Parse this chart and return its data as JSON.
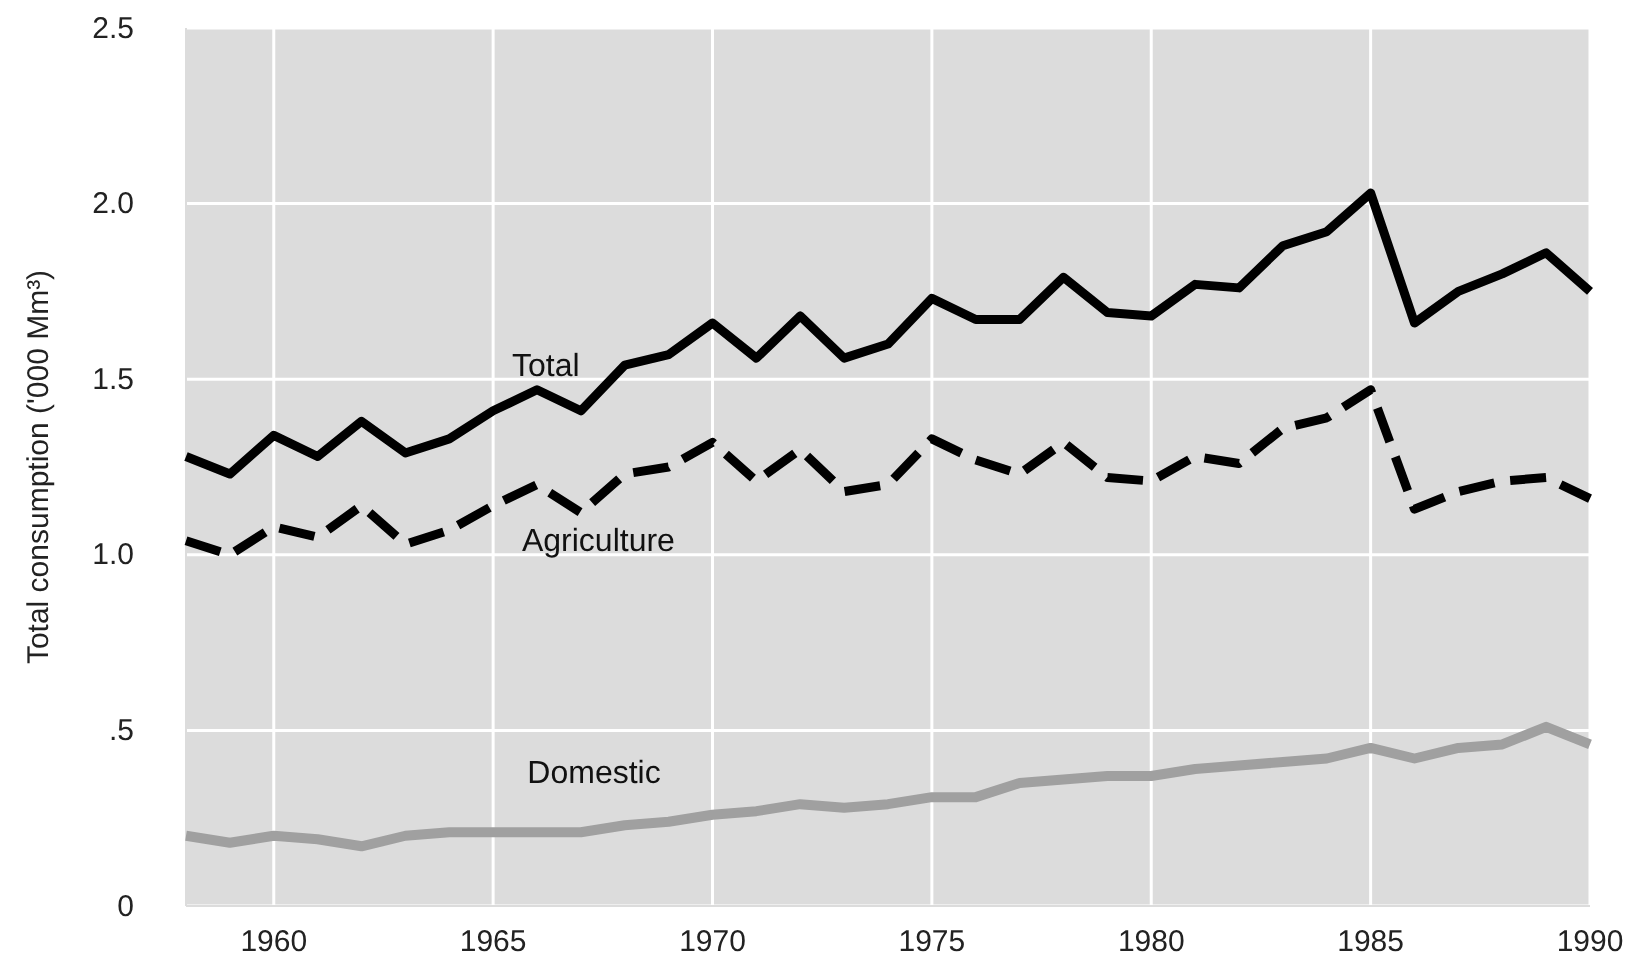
{
  "chart_data": {
    "type": "line",
    "ylabel": "Total consumption ('000 Mm³)",
    "x": [
      1958,
      1959,
      1960,
      1961,
      1962,
      1963,
      1964,
      1965,
      1966,
      1967,
      1968,
      1969,
      1970,
      1971,
      1972,
      1973,
      1974,
      1975,
      1976,
      1977,
      1978,
      1979,
      1980,
      1981,
      1982,
      1983,
      1984,
      1985,
      1986,
      1987,
      1988,
      1989,
      1990
    ],
    "series": [
      {
        "name": "Total",
        "color": "#000000",
        "line_style": "solid",
        "values": [
          1.28,
          1.23,
          1.34,
          1.28,
          1.38,
          1.29,
          1.33,
          1.41,
          1.47,
          1.41,
          1.54,
          1.57,
          1.66,
          1.56,
          1.68,
          1.56,
          1.6,
          1.73,
          1.67,
          1.67,
          1.79,
          1.69,
          1.68,
          1.77,
          1.76,
          1.88,
          1.92,
          2.03,
          1.66,
          1.75,
          1.8,
          1.86,
          1.75
        ]
      },
      {
        "name": "Agriculture",
        "color": "#000000",
        "line_style": "dashed",
        "values": [
          1.04,
          1.0,
          1.08,
          1.05,
          1.14,
          1.03,
          1.07,
          1.14,
          1.2,
          1.12,
          1.23,
          1.25,
          1.32,
          1.21,
          1.3,
          1.18,
          1.2,
          1.33,
          1.27,
          1.23,
          1.32,
          1.22,
          1.21,
          1.28,
          1.26,
          1.36,
          1.39,
          1.47,
          1.13,
          1.18,
          1.21,
          1.22,
          1.16
        ]
      },
      {
        "name": "Domestic",
        "color": "#a0a0a0",
        "line_style": "solid",
        "values": [
          0.2,
          0.18,
          0.2,
          0.19,
          0.17,
          0.2,
          0.21,
          0.21,
          0.21,
          0.21,
          0.23,
          0.24,
          0.26,
          0.27,
          0.29,
          0.28,
          0.29,
          0.31,
          0.31,
          0.35,
          0.36,
          0.37,
          0.37,
          0.39,
          0.4,
          0.41,
          0.42,
          0.45,
          0.42,
          0.45,
          0.46,
          0.51,
          0.46
        ]
      }
    ],
    "xlim": [
      1958,
      1990
    ],
    "xticks": [
      1960,
      1965,
      1970,
      1975,
      1980,
      1985,
      1990
    ],
    "ylim": [
      0,
      2.5
    ],
    "yticks": [
      {
        "value": 0,
        "label": "0"
      },
      {
        "value": 0.5,
        "label": ".5"
      },
      {
        "value": 1,
        "label": "1.0"
      },
      {
        "value": 1.5,
        "label": "1.5"
      },
      {
        "value": 2,
        "label": "2.0"
      },
      {
        "value": 2.5,
        "label": "2.5"
      }
    ],
    "grid": true,
    "legend": false
  }
}
